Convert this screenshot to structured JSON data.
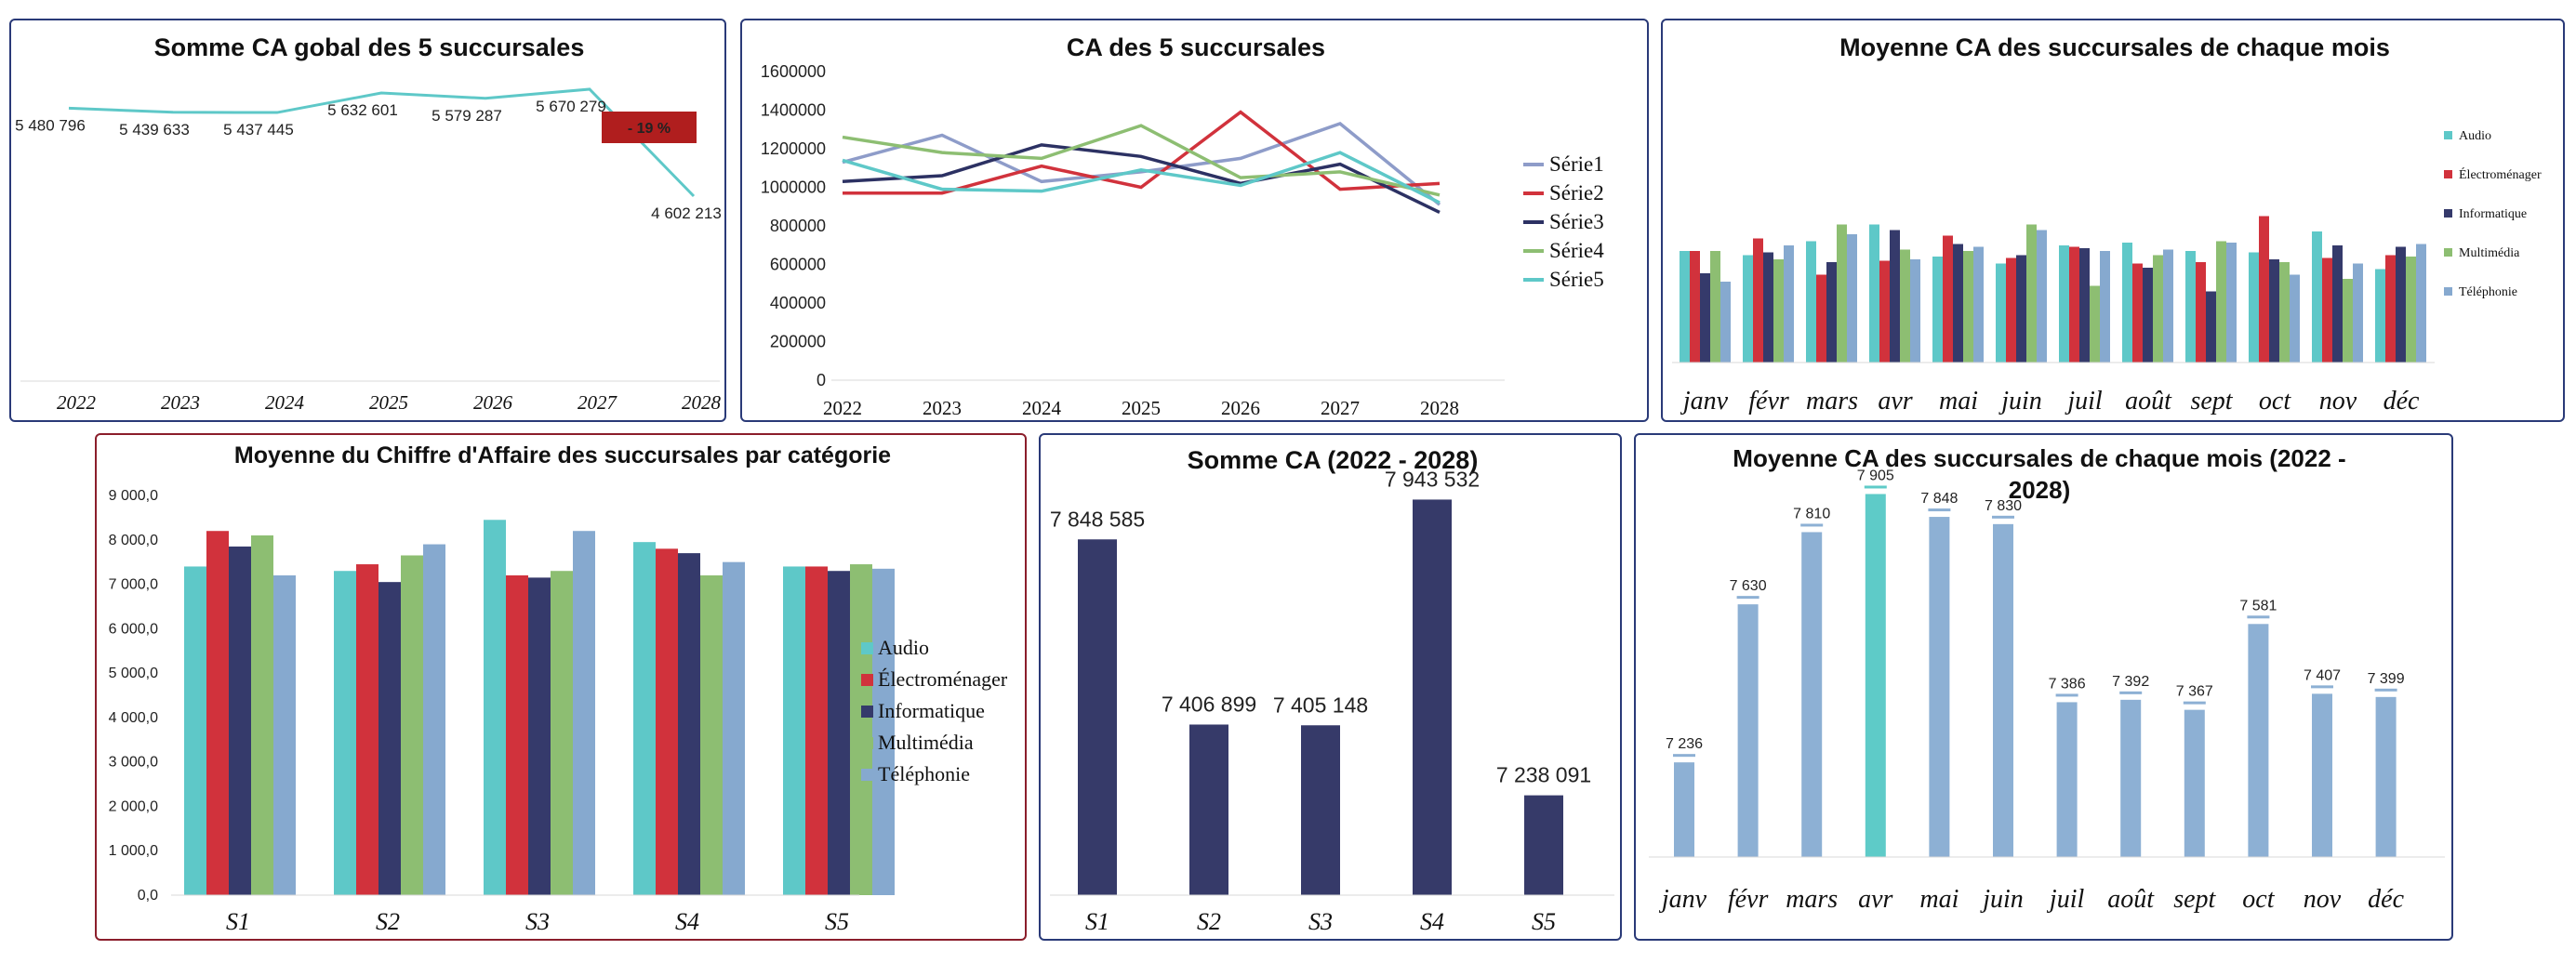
{
  "colors": {
    "audio": "#5EC8C8",
    "electro": "#D1323C",
    "info": "#353A6B",
    "multi": "#8DBE72",
    "tele": "#86A9CF",
    "serie1": "#8E9CC9",
    "serie2": "#D1323C",
    "serie3": "#2C3163",
    "serie4": "#8DBE72",
    "serie5": "#5EC8C8",
    "badge": "#B01E1E",
    "navy": "#363A69",
    "lightblue": "#8DB0D4",
    "highlight": "#5ECBC8"
  },
  "chart_data": [
    {
      "type": "line",
      "title": "Somme CA gobal des 5 succursales",
      "categories": [
        "2022",
        "2023",
        "2024",
        "2025",
        "2026",
        "2027",
        "2028"
      ],
      "series": [
        {
          "values": [
            5480796,
            5439633,
            5437445,
            5632601,
            5579287,
            5670279,
            4602213
          ]
        }
      ],
      "labels": [
        "5 480 796",
        "5 439 633",
        "5 437 445",
        "5 632 601",
        "5 579 287",
        "5 670 279",
        "4 602 213"
      ],
      "badge": "- 19 %"
    },
    {
      "type": "line",
      "title": "CA des 5 succursales",
      "categories": [
        "2022",
        "2023",
        "2024",
        "2025",
        "2026",
        "2027",
        "2028"
      ],
      "ylim": [
        0,
        1600000
      ],
      "yticks": [
        "0",
        "200000",
        "400000",
        "600000",
        "800000",
        "1000000",
        "1200000",
        "1400000",
        "1600000"
      ],
      "legend": "right",
      "series": [
        {
          "name": "Série1",
          "values": [
            1130000,
            1270000,
            1030000,
            1080000,
            1150000,
            1330000,
            910000
          ]
        },
        {
          "name": "Série2",
          "values": [
            970000,
            970000,
            1110000,
            1000000,
            1390000,
            990000,
            1020000
          ]
        },
        {
          "name": "Série3",
          "values": [
            1030000,
            1060000,
            1220000,
            1160000,
            1020000,
            1120000,
            870000
          ]
        },
        {
          "name": "Série4",
          "values": [
            1260000,
            1180000,
            1150000,
            1320000,
            1050000,
            1080000,
            960000
          ]
        },
        {
          "name": "Série5",
          "values": [
            1140000,
            990000,
            980000,
            1090000,
            1010000,
            1180000,
            920000
          ]
        }
      ]
    },
    {
      "type": "bar",
      "title": "Moyenne CA des succursales de chaque mois",
      "categories": [
        "janv",
        "févr",
        "mars",
        "avr",
        "mai",
        "juin",
        "juil",
        "août",
        "sept",
        "oct",
        "nov",
        "déc"
      ],
      "legend": "right",
      "series": [
        {
          "name": "Audio",
          "values": [
            0.8,
            0.77,
            0.87,
            0.99,
            0.76,
            0.71,
            0.84,
            0.86,
            0.8,
            0.79,
            0.94,
            0.67
          ]
        },
        {
          "name": "Électroménager",
          "values": [
            0.8,
            0.89,
            0.63,
            0.73,
            0.91,
            0.75,
            0.83,
            0.71,
            0.72,
            1.05,
            0.75,
            0.77
          ]
        },
        {
          "name": "Informatique",
          "values": [
            0.64,
            0.79,
            0.72,
            0.95,
            0.85,
            0.77,
            0.82,
            0.68,
            0.51,
            0.74,
            0.84,
            0.83
          ]
        },
        {
          "name": "Multimédia",
          "values": [
            0.8,
            0.74,
            0.99,
            0.81,
            0.8,
            0.99,
            0.55,
            0.77,
            0.87,
            0.72,
            0.6,
            0.76
          ]
        },
        {
          "name": "Téléphonie",
          "values": [
            0.58,
            0.84,
            0.92,
            0.74,
            0.83,
            0.95,
            0.8,
            0.81,
            0.86,
            0.63,
            0.71,
            0.85
          ]
        }
      ]
    },
    {
      "type": "bar",
      "title": "Moyenne du Chiffre d'Affaire des succursales par catégorie",
      "categories": [
        "S1",
        "S2",
        "S3",
        "S4",
        "S5"
      ],
      "ylim": [
        0,
        9000
      ],
      "yticks": [
        "0,0",
        "1 000,0",
        "2 000,0",
        "3 000,0",
        "4 000,0",
        "5 000,0",
        "6 000,0",
        "7 000,0",
        "8 000,0",
        "9 000,0"
      ],
      "legend": "right",
      "series": [
        {
          "name": "Audio",
          "values": [
            7400,
            7300,
            8450,
            7950,
            7400
          ]
        },
        {
          "name": "Électroménager",
          "values": [
            8200,
            7450,
            7200,
            7800,
            7400
          ]
        },
        {
          "name": "Informatique",
          "values": [
            7850,
            7050,
            7150,
            7700,
            7300
          ]
        },
        {
          "name": "Multimédia",
          "values": [
            8100,
            7650,
            7300,
            7200,
            7450
          ]
        },
        {
          "name": "Téléphonie",
          "values": [
            7200,
            7900,
            8200,
            7500,
            7350
          ]
        }
      ]
    },
    {
      "type": "bar",
      "title": "Somme CA (2022 - 2028)",
      "categories": [
        "S1",
        "S2",
        "S3",
        "S4",
        "S5"
      ],
      "values": [
        7848585,
        7406899,
        7405148,
        7943532,
        7238091
      ],
      "labels": [
        "7 848 585",
        "7 406 899",
        "7 405 148",
        "7 943 532",
        "7 238 091"
      ]
    },
    {
      "type": "bar",
      "title": "Moyenne CA des succursales de chaque mois (2022 - 2028)",
      "categories": [
        "janv",
        "févr",
        "mars",
        "avr",
        "mai",
        "juin",
        "juil",
        "août",
        "sept",
        "oct",
        "nov",
        "déc"
      ],
      "values": [
        7236,
        7630,
        7810,
        7905,
        7848,
        7830,
        7386,
        7392,
        7367,
        7581,
        7407,
        7399
      ],
      "labels": [
        "7 236",
        "7 630",
        "7 810",
        "7 905",
        "7 848",
        "7 830",
        "7 386",
        "7 392",
        "7 367",
        "7 581",
        "7 407",
        "7 399"
      ]
    }
  ]
}
